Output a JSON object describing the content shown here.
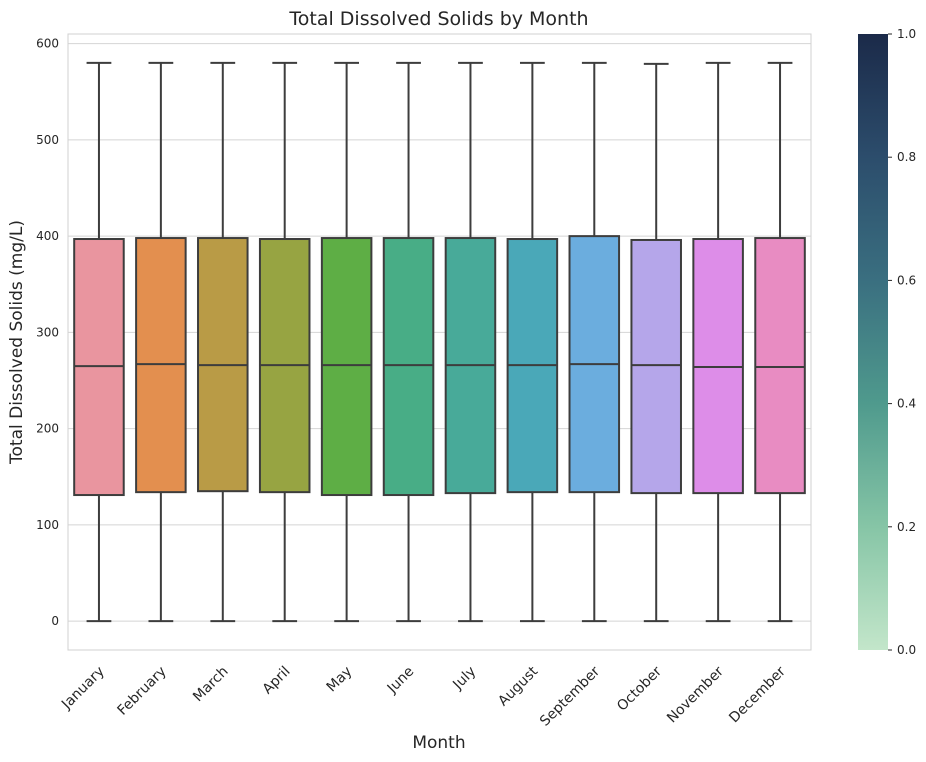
{
  "chart_data": {
    "type": "box",
    "title": "Total Dissolved Solids by Month",
    "xlabel": "Month",
    "ylabel": "Total Dissolved Solids (mg/L)",
    "ylim": [
      -30,
      610
    ],
    "yticks": [
      0,
      100,
      200,
      300,
      400,
      500,
      600
    ],
    "grid": true,
    "categories": [
      "January",
      "February",
      "March",
      "April",
      "May",
      "June",
      "July",
      "August",
      "September",
      "October",
      "November",
      "December"
    ],
    "boxes": [
      {
        "min": 0,
        "q1": 131,
        "median": 265,
        "q3": 397,
        "max": 580
      },
      {
        "min": 0,
        "q1": 134,
        "median": 267,
        "q3": 398,
        "max": 580
      },
      {
        "min": 0,
        "q1": 135,
        "median": 266,
        "q3": 398,
        "max": 580
      },
      {
        "min": 0,
        "q1": 134,
        "median": 266,
        "q3": 397,
        "max": 580
      },
      {
        "min": 0,
        "q1": 131,
        "median": 266,
        "q3": 398,
        "max": 580
      },
      {
        "min": 0,
        "q1": 131,
        "median": 266,
        "q3": 398,
        "max": 580
      },
      {
        "min": 0,
        "q1": 133,
        "median": 266,
        "q3": 398,
        "max": 580
      },
      {
        "min": 0,
        "q1": 134,
        "median": 266,
        "q3": 397,
        "max": 580
      },
      {
        "min": 0,
        "q1": 134,
        "median": 267,
        "q3": 400,
        "max": 580
      },
      {
        "min": 0,
        "q1": 133,
        "median": 266,
        "q3": 396,
        "max": 579
      },
      {
        "min": 0,
        "q1": 133,
        "median": 264,
        "q3": 397,
        "max": 580
      },
      {
        "min": 0,
        "q1": 133,
        "median": 264,
        "q3": 398,
        "max": 580
      }
    ],
    "colors": [
      "#e9959f",
      "#e38f4f",
      "#b99b46",
      "#97a442",
      "#5eae45",
      "#48ad86",
      "#48aa99",
      "#4aa8b8",
      "#6badde",
      "#b5a6ea",
      "#dd8de8",
      "#e88cc2"
    ],
    "colorbar": {
      "ticks": [
        0.0,
        0.2,
        0.4,
        0.6,
        0.8,
        1.0
      ],
      "tick_labels": [
        "0.0",
        "0.2",
        "0.4",
        "0.6",
        "0.8",
        "1.0"
      ],
      "range": [
        0,
        1
      ],
      "colors": [
        "#c3e6ca",
        "#86c5a6",
        "#4f9a8d",
        "#3a6f80",
        "#2c4d6c",
        "#1b2a49"
      ]
    }
  }
}
